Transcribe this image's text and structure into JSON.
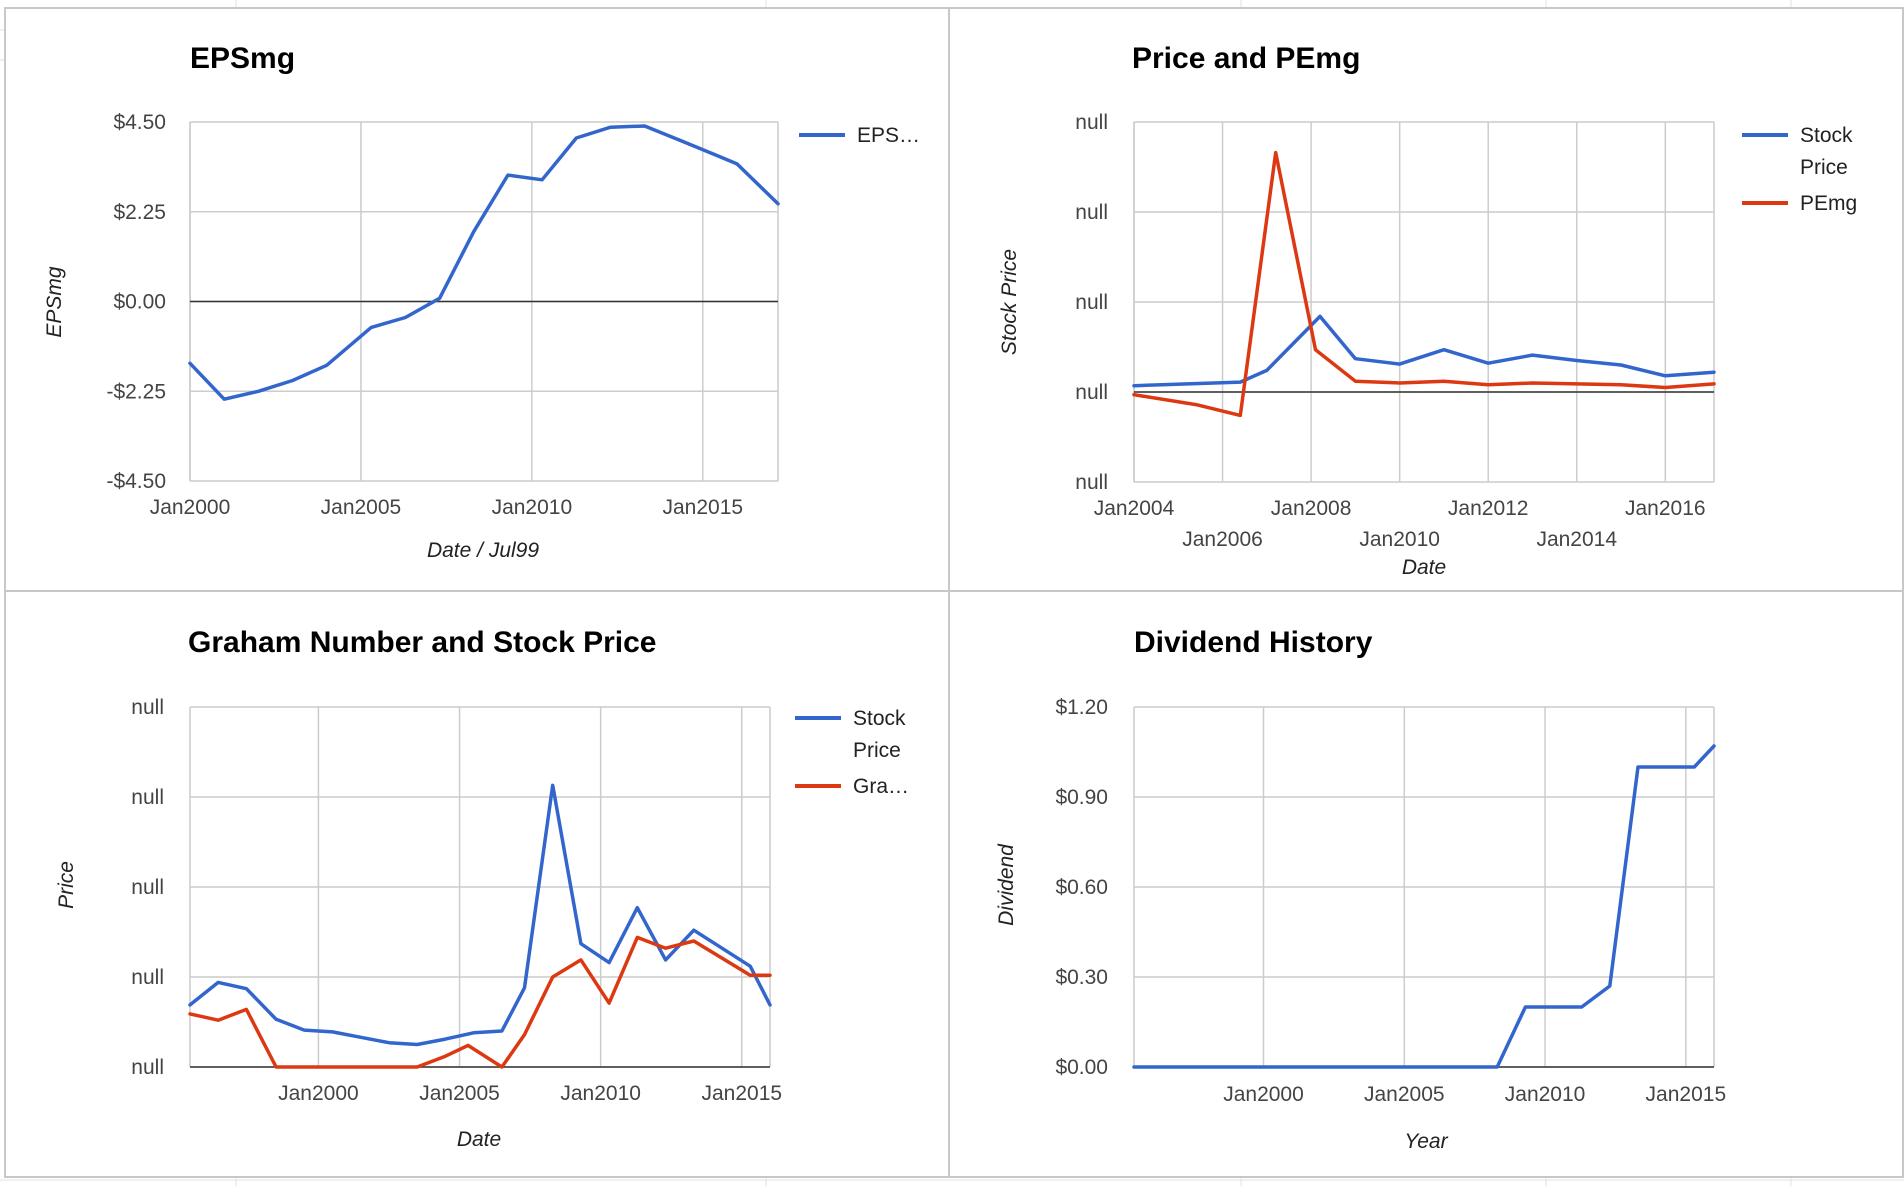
{
  "chart_data": [
    {
      "type": "line",
      "title": "EPSmg",
      "xlabel": "Date / Jul99",
      "ylabel": "EPSmg",
      "x_ticks": [
        {
          "x": 2000.0,
          "label": "Jan2000"
        },
        {
          "x": 2005.0,
          "label": "Jan2005"
        },
        {
          "x": 2010.0,
          "label": "Jan2010"
        },
        {
          "x": 2015.0,
          "label": "Jan2015"
        }
      ],
      "y_ticks": [
        {
          "y": 4.5,
          "label": "$4.50"
        },
        {
          "y": 2.25,
          "label": "$2.25"
        },
        {
          "y": 0.0,
          "label": "$0.00"
        },
        {
          "y": -2.25,
          "label": "-$2.25"
        },
        {
          "y": -4.5,
          "label": "-$4.50"
        }
      ],
      "xlim": [
        2000.0,
        2017.2
      ],
      "ylim": [
        -4.5,
        4.5
      ],
      "baseline": 0.0,
      "legend_position": "right",
      "series": [
        {
          "name": "EPS…",
          "color": "#3366cc",
          "points": [
            [
              2000.0,
              -1.55
            ],
            [
              2001.0,
              -2.45
            ],
            [
              2002.0,
              -2.25
            ],
            [
              2003.0,
              -1.98
            ],
            [
              2004.0,
              -1.6
            ],
            [
              2005.3,
              -0.65
            ],
            [
              2006.3,
              -0.4
            ],
            [
              2007.3,
              0.08
            ],
            [
              2008.3,
              1.75
            ],
            [
              2009.3,
              3.17
            ],
            [
              2010.3,
              3.05
            ],
            [
              2011.3,
              4.1
            ],
            [
              2012.3,
              4.37
            ],
            [
              2013.3,
              4.4
            ],
            [
              2014.3,
              4.05
            ],
            [
              2015.3,
              3.7
            ],
            [
              2016.0,
              3.45
            ],
            [
              2017.2,
              2.45
            ]
          ]
        }
      ]
    },
    {
      "type": "line",
      "title": "Price and PEmg",
      "xlabel": "Date",
      "ylabel": "Stock Price",
      "x_ticks": [
        {
          "x": 2004.0,
          "label": "Jan2004",
          "row": 1
        },
        {
          "x": 2006.0,
          "label": "Jan2006",
          "row": 2
        },
        {
          "x": 2008.0,
          "label": "Jan2008",
          "row": 1
        },
        {
          "x": 2010.0,
          "label": "Jan2010",
          "row": 2
        },
        {
          "x": 2012.0,
          "label": "Jan2012",
          "row": 1
        },
        {
          "x": 2014.0,
          "label": "Jan2014",
          "row": 2
        },
        {
          "x": 2016.0,
          "label": "Jan2016",
          "row": 1
        }
      ],
      "y_ticks": [
        {
          "y": 4,
          "label": "null"
        },
        {
          "y": 3,
          "label": "null"
        },
        {
          "y": 2,
          "label": "null"
        },
        {
          "y": 1,
          "label": "null"
        },
        {
          "y": 0,
          "label": "null"
        }
      ],
      "xlim": [
        2004.0,
        2017.1
      ],
      "ylim": [
        0,
        4
      ],
      "baseline": 1,
      "legend_position": "right",
      "series": [
        {
          "name": "Stock Price",
          "color": "#3366cc",
          "points": [
            [
              2004.0,
              1.07
            ],
            [
              2006.4,
              1.11
            ],
            [
              2007.0,
              1.24
            ],
            [
              2008.2,
              1.84
            ],
            [
              2009.0,
              1.37
            ],
            [
              2010.0,
              1.31
            ],
            [
              2011.0,
              1.47
            ],
            [
              2012.0,
              1.32
            ],
            [
              2013.0,
              1.41
            ],
            [
              2014.0,
              1.35
            ],
            [
              2015.0,
              1.3
            ],
            [
              2016.0,
              1.18
            ],
            [
              2017.1,
              1.22
            ]
          ]
        },
        {
          "name": "PEmg",
          "color": "#dc3912",
          "points": [
            [
              2004.0,
              0.97
            ],
            [
              2005.4,
              0.86
            ],
            [
              2006.4,
              0.74
            ],
            [
              2007.2,
              3.66
            ],
            [
              2008.1,
              1.47
            ],
            [
              2009.0,
              1.12
            ],
            [
              2010.0,
              1.1
            ],
            [
              2011.0,
              1.12
            ],
            [
              2012.0,
              1.08
            ],
            [
              2013.0,
              1.1
            ],
            [
              2014.0,
              1.09
            ],
            [
              2015.0,
              1.08
            ],
            [
              2016.0,
              1.05
            ],
            [
              2017.1,
              1.09
            ]
          ]
        }
      ]
    },
    {
      "type": "line",
      "title": "Graham Number and Stock Price",
      "xlabel": "Date",
      "ylabel": "Price",
      "x_ticks": [
        {
          "x": 2000.0,
          "label": "Jan2000"
        },
        {
          "x": 2005.0,
          "label": "Jan2005"
        },
        {
          "x": 2010.0,
          "label": "Jan2010"
        },
        {
          "x": 2015.0,
          "label": "Jan2015"
        }
      ],
      "y_ticks": [
        {
          "y": 4,
          "label": "null"
        },
        {
          "y": 3,
          "label": "null"
        },
        {
          "y": 2,
          "label": "null"
        },
        {
          "y": 1,
          "label": "null"
        },
        {
          "y": 0,
          "label": "null"
        }
      ],
      "xlim": [
        1995.45,
        2016.0
      ],
      "ylim": [
        0,
        4
      ],
      "baseline": 0,
      "legend_position": "right",
      "series": [
        {
          "name": "Stock Price",
          "color": "#3366cc",
          "points": [
            [
              1995.45,
              0.69
            ],
            [
              1996.45,
              0.94
            ],
            [
              1997.45,
              0.87
            ],
            [
              1998.5,
              0.53
            ],
            [
              1999.5,
              0.41
            ],
            [
              2000.5,
              0.39
            ],
            [
              2001.5,
              0.33
            ],
            [
              2002.5,
              0.27
            ],
            [
              2003.5,
              0.25
            ],
            [
              2004.5,
              0.31
            ],
            [
              2005.5,
              0.38
            ],
            [
              2006.5,
              0.4
            ],
            [
              2007.3,
              0.88
            ],
            [
              2008.3,
              3.13
            ],
            [
              2009.3,
              1.37
            ],
            [
              2010.3,
              1.16
            ],
            [
              2011.3,
              1.77
            ],
            [
              2012.3,
              1.19
            ],
            [
              2013.3,
              1.52
            ],
            [
              2014.3,
              1.32
            ],
            [
              2015.3,
              1.12
            ],
            [
              2016.0,
              0.69
            ]
          ]
        },
        {
          "name": "Gra…",
          "color": "#dc3912",
          "points": [
            [
              1995.45,
              0.59
            ],
            [
              1996.45,
              0.52
            ],
            [
              1997.45,
              0.64
            ],
            [
              1998.5,
              0.0
            ],
            [
              1999.5,
              0.0
            ],
            [
              2000.5,
              0.0
            ],
            [
              2001.5,
              0.0
            ],
            [
              2002.5,
              0.0
            ],
            [
              2003.5,
              0.0
            ],
            [
              2004.5,
              0.12
            ],
            [
              2005.3,
              0.24
            ],
            [
              2006.5,
              0.0
            ],
            [
              2007.3,
              0.36
            ],
            [
              2008.3,
              1.0
            ],
            [
              2009.3,
              1.19
            ],
            [
              2010.3,
              0.71
            ],
            [
              2011.3,
              1.44
            ],
            [
              2012.3,
              1.32
            ],
            [
              2013.3,
              1.4
            ],
            [
              2014.3,
              1.21
            ],
            [
              2015.3,
              1.02
            ],
            [
              2016.0,
              1.02
            ]
          ]
        }
      ]
    },
    {
      "type": "line",
      "title": "Dividend History",
      "xlabel": "Year",
      "ylabel": "Dividend",
      "x_ticks": [
        {
          "x": 2000.0,
          "label": "Jan2000"
        },
        {
          "x": 2005.0,
          "label": "Jan2005"
        },
        {
          "x": 2010.0,
          "label": "Jan2010"
        },
        {
          "x": 2015.0,
          "label": "Jan2015"
        }
      ],
      "y_ticks": [
        {
          "y": 1.2,
          "label": "$1.20"
        },
        {
          "y": 0.9,
          "label": "$0.90"
        },
        {
          "y": 0.6,
          "label": "$0.60"
        },
        {
          "y": 0.3,
          "label": "$0.30"
        },
        {
          "y": 0.0,
          "label": "$0.00"
        }
      ],
      "xlim": [
        1995.4,
        2016.0
      ],
      "ylim": [
        0,
        1.2
      ],
      "baseline": 0.0,
      "legend_position": "none",
      "series": [
        {
          "name": "Dividend",
          "color": "#3366cc",
          "points": [
            [
              1995.4,
              0.0
            ],
            [
              2008.3,
              0.0
            ],
            [
              2009.3,
              0.2
            ],
            [
              2010.3,
              0.2
            ],
            [
              2011.3,
              0.2
            ],
            [
              2012.3,
              0.27
            ],
            [
              2013.3,
              1.0
            ],
            [
              2014.3,
              1.0
            ],
            [
              2015.3,
              1.0
            ],
            [
              2016.0,
              1.07
            ]
          ]
        }
      ]
    }
  ]
}
